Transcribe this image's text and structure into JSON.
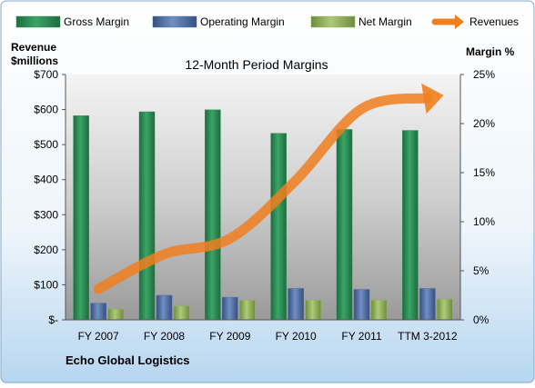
{
  "chart_data": {
    "type": "bar",
    "title": "12-Month Period Margins",
    "categories": [
      "FY 2007",
      "FY 2008",
      "FY 2009",
      "FY 2010",
      "FY 2011",
      "TTM 3-2012"
    ],
    "left_axis": {
      "label_line1": "Revenue",
      "label_line2": "$millions",
      "range": [
        0,
        700
      ],
      "ticks": [
        0,
        100,
        200,
        300,
        400,
        500,
        600,
        700
      ],
      "tick_labels": [
        "$-",
        "$100",
        "$200",
        "$300",
        "$400",
        "$500",
        "$600",
        "$700"
      ]
    },
    "right_axis": {
      "label": "Margin %",
      "range": [
        0,
        25
      ],
      "ticks": [
        0,
        5,
        10,
        15,
        20,
        25
      ],
      "tick_labels": [
        "0%",
        "5%",
        "10%",
        "15%",
        "20%",
        "25%"
      ]
    },
    "series": [
      {
        "name": "Gross Margin",
        "axis": "right",
        "color": "#2e8b57",
        "values": [
          20.8,
          21.2,
          21.4,
          19.0,
          19.4,
          19.3
        ]
      },
      {
        "name": "Operating Margin",
        "axis": "right",
        "color": "#4f6fa8",
        "values": [
          1.7,
          2.5,
          2.3,
          3.2,
          3.1,
          3.2
        ]
      },
      {
        "name": "Net Margin",
        "axis": "right",
        "color": "#8fb35a",
        "values": [
          1.1,
          1.4,
          2.0,
          2.0,
          2.0,
          2.1
        ]
      },
      {
        "name": "Revenues",
        "axis": "left",
        "type": "line",
        "color": "#f07f1e",
        "values": [
          88,
          187,
          232,
          398,
          602,
          633
        ]
      }
    ],
    "legend_position": "top",
    "grid": false,
    "source_note": "Echo Global Logistics"
  }
}
